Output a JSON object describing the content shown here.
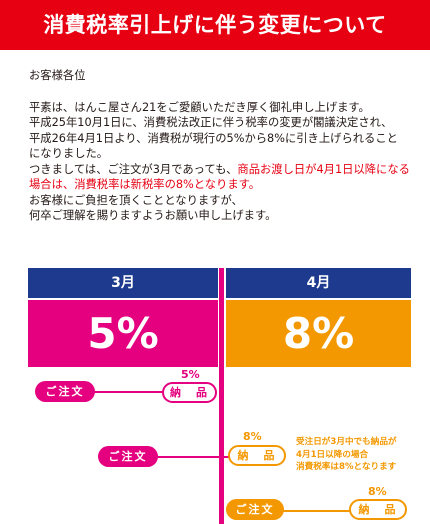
{
  "title": "消費税率引上げに伴う変更について",
  "notice": {
    "greeting": "お客様各位",
    "line1": "平素は、はんこ屋さん21をご愛顧いただき厚く御礼申し上げます。",
    "line2": "平成25年10月1日に、消費税法改正に伴う税率の変更が閣議決定され、",
    "line3": "平成26年4月1日より、消費税が現行の5%から8%に引き上げられること",
    "line4": "になりました。",
    "line5_plain": "つきましては、ご注文が3月であっても、",
    "line5_highlight": "商品お渡し日が4月1日以降になる",
    "line6_highlight": "場合は、消費税率は新税率の8%となります。",
    "line7": "お客様にご負担を頂くこととなりますが、",
    "line8": "何卒ご理解を賜りますようお願い申し上げます。"
  },
  "colors": {
    "banner": "#e60012",
    "header_blue": "#1d3a8f",
    "march_pink": "#e4007f",
    "april_orange": "#f39800",
    "highlight_red": "#e60012"
  },
  "march": {
    "label": "3月",
    "rate": "5%"
  },
  "april": {
    "label": "4月",
    "rate": "8%"
  },
  "timeline": {
    "order_label": "ご注文",
    "delivery_label": "納　品",
    "row1_rate": "5%",
    "row2_rate": "8%",
    "row3_rate": "8%",
    "note_line1": "受注日が3月中でも納品が",
    "note_line2": "4月1日以降の場合",
    "note_line3": "消費税率は8%となります"
  }
}
